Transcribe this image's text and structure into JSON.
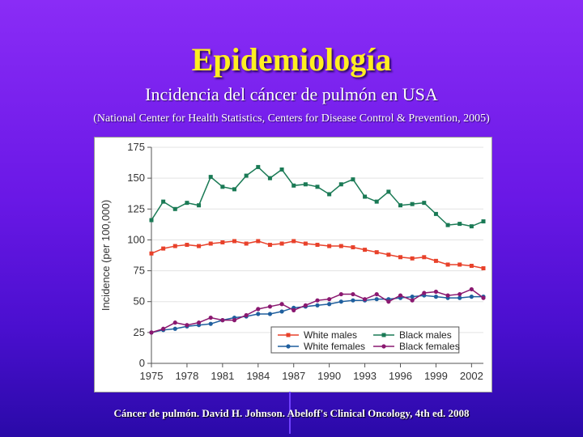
{
  "slide": {
    "title": "Epidemiología",
    "subtitle": "Incidencia del cáncer de pulmón en USA",
    "source": "(National Center for Health Statistics, Centers for Disease Control & Prevention, 2005)",
    "footer": "Cáncer de pulmón. David H. Johnson. Abeloff's Clinical Oncology, 4th ed. 2008"
  },
  "chart_data": {
    "type": "line",
    "ylabel": "Incidence (per 100,000)",
    "xlabel": "",
    "ylim": [
      0,
      175
    ],
    "xlim": [
      1975,
      2003
    ],
    "yticks": [
      0,
      25,
      50,
      75,
      100,
      125,
      150,
      175
    ],
    "xticks": [
      1975,
      1978,
      1981,
      1984,
      1987,
      1990,
      1993,
      1996,
      1999,
      2002
    ],
    "grid": true,
    "legend_position": "bottom-right",
    "x": [
      1975,
      1976,
      1977,
      1978,
      1979,
      1980,
      1981,
      1982,
      1983,
      1984,
      1985,
      1986,
      1987,
      1988,
      1989,
      1990,
      1991,
      1992,
      1993,
      1994,
      1995,
      1996,
      1997,
      1998,
      1999,
      2000,
      2001,
      2002,
      2003
    ],
    "series": [
      {
        "name": "White males",
        "color": "#e8412a",
        "marker": "square",
        "values": [
          89,
          93,
          95,
          96,
          95,
          97,
          98,
          99,
          97,
          99,
          96,
          97,
          99,
          97,
          96,
          95,
          95,
          94,
          92,
          90,
          88,
          86,
          85,
          86,
          83,
          80,
          80,
          79,
          77
        ]
      },
      {
        "name": "Black males",
        "color": "#1a7a55",
        "marker": "square",
        "values": [
          116,
          131,
          125,
          130,
          128,
          151,
          143,
          141,
          152,
          159,
          150,
          157,
          144,
          145,
          143,
          137,
          145,
          149,
          135,
          131,
          139,
          128,
          129,
          130,
          121,
          112,
          113,
          111,
          115
        ]
      },
      {
        "name": "White females",
        "color": "#1f5f9e",
        "marker": "circle",
        "values": [
          25,
          27,
          28,
          30,
          31,
          32,
          35,
          37,
          38,
          40,
          40,
          42,
          45,
          46,
          47,
          48,
          50,
          51,
          51,
          52,
          52,
          53,
          54,
          55,
          54,
          53,
          53,
          54,
          54
        ]
      },
      {
        "name": "Black females",
        "color": "#8a1870",
        "marker": "circle",
        "values": [
          25,
          28,
          33,
          31,
          33,
          37,
          35,
          35,
          39,
          44,
          46,
          48,
          43,
          47,
          51,
          52,
          56,
          56,
          52,
          56,
          50,
          55,
          51,
          57,
          58,
          55,
          56,
          60,
          53
        ]
      }
    ]
  }
}
